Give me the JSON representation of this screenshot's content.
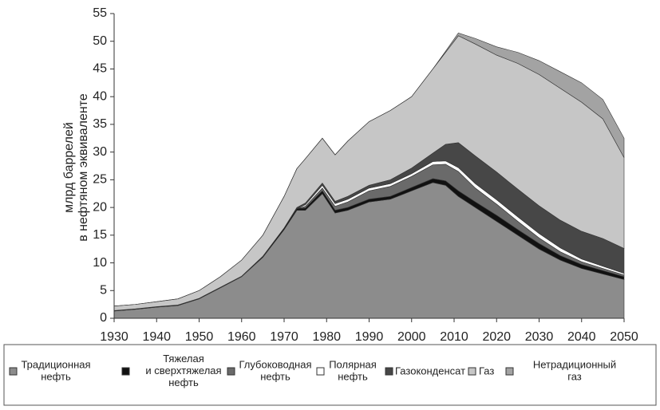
{
  "chart_data": {
    "type": "stacked_area",
    "y_label": "млрд баррелей\nв нефтяном эквиваленте",
    "x": [
      1930,
      1935,
      1940,
      1945,
      1950,
      1955,
      1960,
      1965,
      1970,
      1973,
      1975,
      1979,
      1982,
      1985,
      1990,
      1995,
      2000,
      2005,
      2008,
      2011,
      2015,
      2020,
      2025,
      2030,
      2035,
      2040,
      2045,
      2050
    ],
    "xlim": [
      1930,
      2050
    ],
    "xticks": [
      1930,
      1940,
      1950,
      1960,
      1970,
      1980,
      1990,
      2000,
      2010,
      2020,
      2030,
      2040,
      2050
    ],
    "ylim": [
      0,
      55
    ],
    "yticks": [
      0,
      5,
      10,
      15,
      20,
      25,
      30,
      35,
      40,
      45,
      50,
      55
    ],
    "series": [
      {
        "name": "Традиционная\nнефть",
        "color": "#8c8c8c",
        "values": [
          1.3,
          1.6,
          2.0,
          2.3,
          3.5,
          5.5,
          7.5,
          11,
          16,
          19.5,
          19.5,
          22.5,
          19,
          19.5,
          21,
          21.5,
          23,
          24.5,
          24,
          22,
          20,
          17.5,
          15,
          12.5,
          10.5,
          9,
          8,
          7
        ]
      },
      {
        "name": "Тяжелая\nи сверхтяжелая\nнефть",
        "color": "#111111",
        "values": [
          0.1,
          0.1,
          0.1,
          0.1,
          0.1,
          0.1,
          0.1,
          0.2,
          0.3,
          0.3,
          0.4,
          0.5,
          0.5,
          0.5,
          0.5,
          0.5,
          0.6,
          0.7,
          0.8,
          1.0,
          1.0,
          1.1,
          1.0,
          1.0,
          0.8,
          0.7,
          0.6,
          0.5
        ]
      },
      {
        "name": "Глубоководная\nнефть",
        "color": "#6a6a6a",
        "values": [
          0,
          0,
          0,
          0,
          0,
          0,
          0,
          0,
          0,
          0,
          0.3,
          0.5,
          0.7,
          1,
          1.5,
          1.8,
          2,
          2.5,
          3,
          3.5,
          2.5,
          2,
          1.5,
          1,
          0.7,
          0.5,
          0.4,
          0.3
        ]
      },
      {
        "name": "Полярная\nнефть",
        "color": "#ffffff",
        "values": [
          0,
          0,
          0,
          0,
          0,
          0,
          0,
          0,
          0,
          0,
          0.3,
          0.5,
          0.5,
          0.5,
          0.5,
          0.5,
          0.5,
          0.6,
          0.6,
          0.7,
          0.8,
          0.8,
          0.8,
          0.8,
          0.7,
          0.5,
          0.4,
          0.3
        ]
      },
      {
        "name": "Газоконденсат",
        "color": "#474747",
        "values": [
          0,
          0,
          0,
          0,
          0,
          0,
          0,
          0,
          0,
          0.2,
          0.3,
          0.4,
          0.4,
          0.5,
          0.5,
          0.7,
          1,
          1.5,
          3,
          4.5,
          5,
          5,
          5,
          5,
          5,
          5,
          5,
          4.5
        ]
      },
      {
        "name": "Газ",
        "color": "#c6c6c6",
        "values": [
          0.8,
          0.8,
          0.9,
          1.1,
          1.4,
          1.9,
          2.9,
          3.8,
          5.7,
          7.0,
          8.0,
          8.1,
          8.4,
          10,
          11.5,
          12.5,
          12.9,
          15.2,
          16.6,
          19.3,
          20.2,
          21.1,
          22.7,
          23.7,
          23.8,
          23.3,
          21.6,
          16.4
        ]
      },
      {
        "name": "Нетрадиционный\nгаз",
        "color": "#a3a3a3",
        "values": [
          0,
          0,
          0,
          0,
          0,
          0,
          0,
          0,
          0,
          0,
          0,
          0,
          0,
          0,
          0,
          0,
          0,
          0,
          0.2,
          0.5,
          1,
          1.5,
          2,
          2.5,
          3,
          3.5,
          3.5,
          3.5
        ]
      }
    ]
  }
}
